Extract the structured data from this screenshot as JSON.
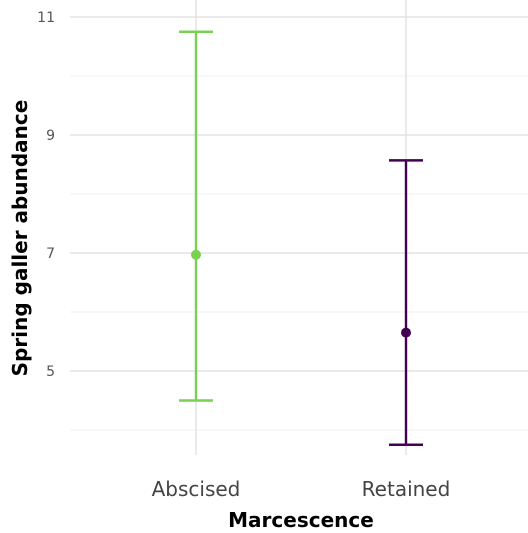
{
  "chart_data": {
    "type": "errorbar",
    "xlabel": "Marcescence",
    "ylabel": "Spring galler abundance",
    "categories": [
      "Abscised",
      "Retained"
    ],
    "points": [
      {
        "category": "Abscised",
        "mean": 6.97,
        "lower": 4.5,
        "upper": 10.75,
        "color": "#7ad151"
      },
      {
        "category": "Retained",
        "mean": 5.65,
        "lower": 3.75,
        "upper": 8.57,
        "color": "#440154"
      }
    ],
    "y_ticks": [
      "5",
      "7",
      "9",
      "11"
    ],
    "y_tick_values": [
      5,
      7,
      9,
      11
    ],
    "ylim": [
      3.45,
      11.0
    ],
    "grid": true,
    "legend": "none"
  }
}
